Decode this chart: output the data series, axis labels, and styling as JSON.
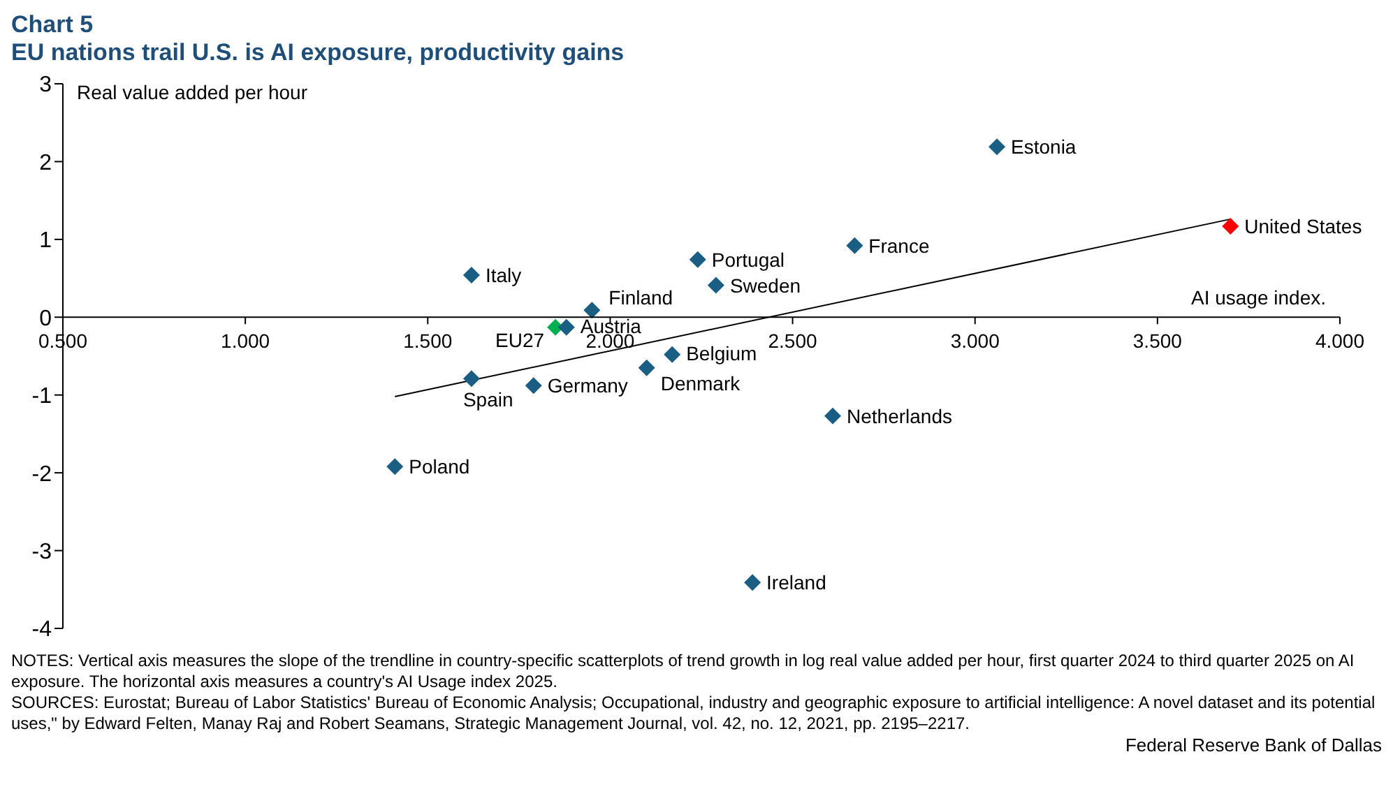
{
  "chart_data": {
    "type": "scatter",
    "title": "Chart 5",
    "subtitle": "EU nations trail U.S. is AI exposure, productivity gains",
    "ylabel": "Real value added per hour",
    "xlabel": "AI usage index.",
    "xlim": [
      0.5,
      4
    ],
    "xticks": [
      {
        "value": 0.5,
        "label": "0.500"
      },
      {
        "value": 1,
        "label": "1.000"
      },
      {
        "value": 1.5,
        "label": "1.500"
      },
      {
        "value": 2,
        "label": "2.000"
      },
      {
        "value": 2.5,
        "label": "2.500"
      },
      {
        "value": 3,
        "label": "3.000"
      },
      {
        "value": 3.5,
        "label": "3.500"
      },
      {
        "value": 4,
        "label": "4.000"
      }
    ],
    "ylim": [
      -4,
      3
    ],
    "yticks": [
      -4,
      -3,
      -2,
      -1,
      0,
      1,
      2,
      3
    ],
    "grid": false,
    "legend": false,
    "marker": "diamond",
    "series": [
      {
        "name": "Estonia",
        "color": "#1a5e83",
        "x": [
          3.06
        ],
        "values": [
          2.19
        ]
      },
      {
        "name": "United States",
        "color": "#ff0000",
        "x": [
          3.7
        ],
        "values": [
          1.17
        ]
      },
      {
        "name": "France",
        "color": "#1a5e83",
        "x": [
          2.67
        ],
        "values": [
          0.92
        ]
      },
      {
        "name": "Portugal",
        "color": "#1a5e83",
        "x": [
          2.24
        ],
        "values": [
          0.74
        ]
      },
      {
        "name": "Sweden",
        "color": "#1a5e83",
        "x": [
          2.29
        ],
        "values": [
          0.41
        ]
      },
      {
        "name": "Italy",
        "color": "#1a5e83",
        "x": [
          1.62
        ],
        "values": [
          0.54
        ]
      },
      {
        "name": "Finland",
        "color": "#1a5e83",
        "x": [
          1.95
        ],
        "values": [
          0.09
        ]
      },
      {
        "name": "EU27",
        "color": "#00b050",
        "x": [
          1.85
        ],
        "values": [
          -0.13
        ]
      },
      {
        "name": "Austria",
        "color": "#1a5e83",
        "x": [
          1.88
        ],
        "values": [
          -0.13
        ]
      },
      {
        "name": "Belgium",
        "color": "#1a5e83",
        "x": [
          2.17
        ],
        "values": [
          -0.48
        ]
      },
      {
        "name": "Denmark",
        "color": "#1a5e83",
        "x": [
          2.1
        ],
        "values": [
          -0.65
        ]
      },
      {
        "name": "Spain",
        "color": "#1a5e83",
        "x": [
          1.62
        ],
        "values": [
          -0.79
        ]
      },
      {
        "name": "Germany",
        "color": "#1a5e83",
        "x": [
          1.79
        ],
        "values": [
          -0.88
        ]
      },
      {
        "name": "Netherlands",
        "color": "#1a5e83",
        "x": [
          2.61
        ],
        "values": [
          -1.27
        ]
      },
      {
        "name": "Poland",
        "color": "#1a5e83",
        "x": [
          1.41
        ],
        "values": [
          -1.92
        ]
      },
      {
        "name": "Ireland",
        "color": "#1a5e83",
        "x": [
          2.39
        ],
        "values": [
          -3.41
        ]
      },
      {
        "type": "line",
        "marker": "none",
        "color": "#000000",
        "x": [
          1.41,
          3.7
        ],
        "values": [
          -1.02,
          1.26
        ]
      }
    ],
    "annotations": [
      "NOTES: Vertical axis measures the slope of the trendline in country-specific scatterplots of trend growth in log real value added per hour, first quarter 2024 to third quarter 2025 on AI exposure. The horizontal axis measures a country's AI Usage index 2025.",
      "SOURCES: Eurostat; Bureau of Labor Statistics' Bureau of Economic Analysis; Occupational, industry and geographic exposure to artificial intelligence: A novel dataset and its potential uses,\" by Edward Felten, Manay Raj and Robert Seamans, Strategic Management Journal, vol. 42, no. 12, 2021, pp. 2195–2217.",
      "Federal Reserve Bank of Dallas"
    ]
  }
}
